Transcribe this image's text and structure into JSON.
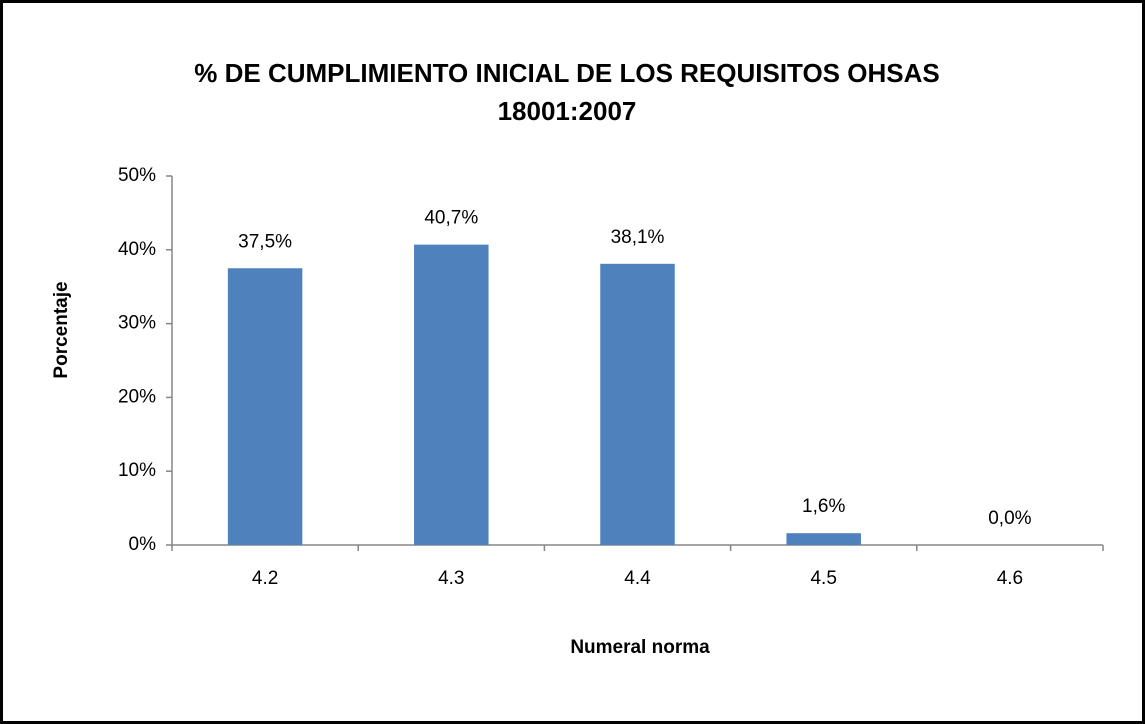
{
  "chart_data": {
    "type": "bar",
    "title": "% DE CUMPLIMIENTO INICIAL DE LOS REQUISITOS OHSAS 18001:2007",
    "x_label": "Numeral norma",
    "y_label": "Porcentaje",
    "categories": [
      "4.2",
      "4.3",
      "4.4",
      "4.5",
      "4.6"
    ],
    "values": [
      37.5,
      40.7,
      38.1,
      1.6,
      0.0
    ],
    "value_labels": [
      "37,5%",
      "40,7%",
      "38,1%",
      "1,6%",
      "0,0%"
    ],
    "color": "#4f81bd",
    "ylim": [
      0,
      50
    ],
    "yticks": [
      {
        "value": 0,
        "label": "0%"
      },
      {
        "value": 10,
        "label": "10%"
      },
      {
        "value": 20,
        "label": "20%"
      },
      {
        "value": 30,
        "label": "30%"
      },
      {
        "value": 40,
        "label": "40%"
      },
      {
        "value": 50,
        "label": "50%"
      }
    ],
    "grid": false
  }
}
